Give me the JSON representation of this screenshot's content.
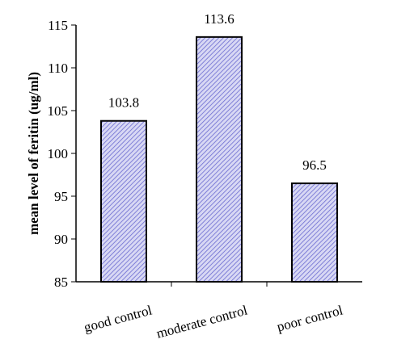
{
  "chart_data": {
    "type": "bar",
    "categories": [
      "good control",
      "moderate control",
      "poor control"
    ],
    "values": [
      103.8,
      113.6,
      96.5
    ],
    "data_labels": [
      "103.8",
      "113.6",
      "96.5"
    ],
    "title": "",
    "xlabel": "",
    "ylabel": "mean level of feritin (ug/ml)",
    "ylim": [
      85,
      115
    ],
    "yticks": [
      85,
      90,
      95,
      100,
      105,
      110,
      115
    ],
    "bar_fill": "#d8d8f4",
    "bar_hatch_color": "#6a6ad0",
    "bar_stroke": "#000000",
    "grid": false,
    "legend": "none"
  }
}
